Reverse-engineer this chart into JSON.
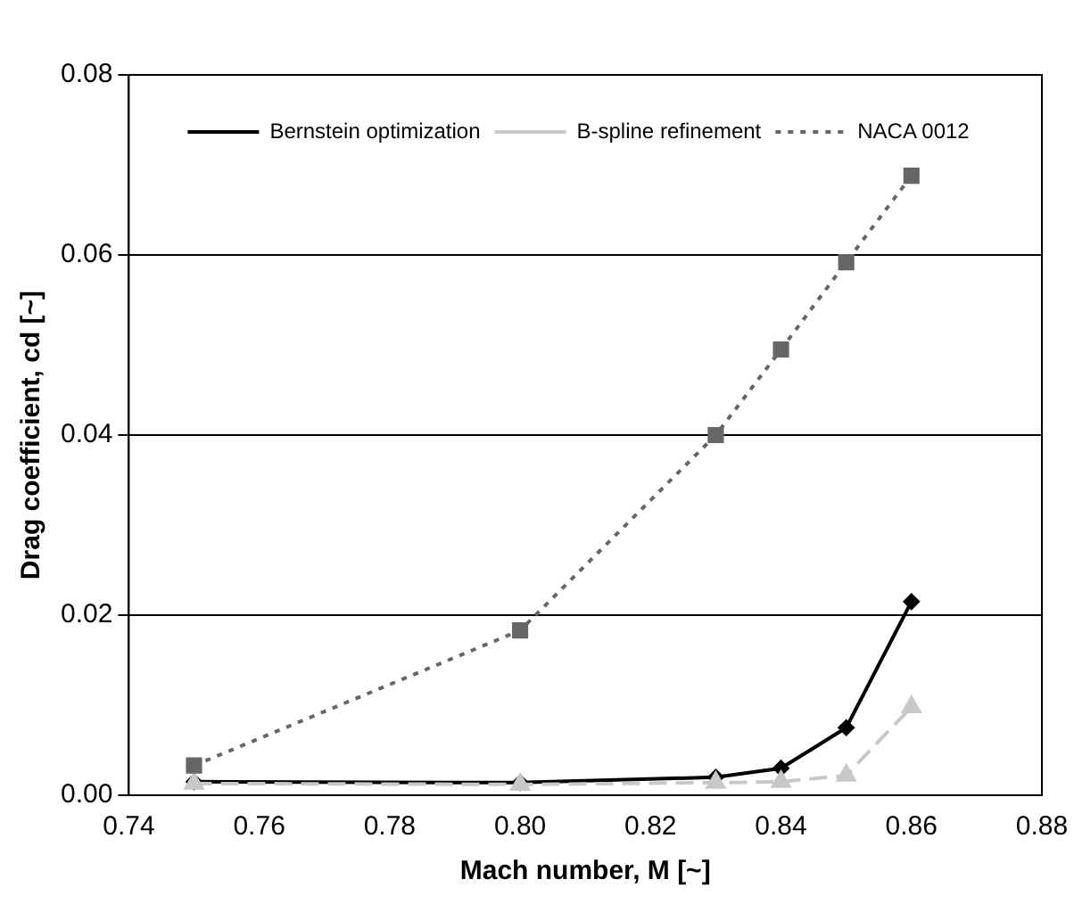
{
  "chart_data": {
    "type": "line",
    "xlabel": "Mach number, M [~]",
    "ylabel": "Drag coefficient, cd [~]",
    "x": [
      0.75,
      0.8,
      0.83,
      0.84,
      0.85,
      0.86
    ],
    "series": [
      {
        "name": "Bernstein optimization",
        "color": "#000000",
        "marker": "diamond",
        "line_style": "solid",
        "values": [
          0.0015,
          0.0014,
          0.002,
          0.003,
          0.0075,
          0.0215
        ]
      },
      {
        "name": "B-spline refinement",
        "color": "#c8c8c8",
        "marker": "triangle",
        "line_style": "dashed",
        "values": [
          0.0013,
          0.0012,
          0.0014,
          0.0015,
          0.0022,
          0.0098
        ]
      },
      {
        "name": "NACA 0012",
        "color": "#666666",
        "marker": "square",
        "line_style": "dotted",
        "values": [
          0.0033,
          0.0183,
          0.04,
          0.0495,
          0.0592,
          0.0688
        ]
      }
    ],
    "xlim": [
      0.74,
      0.88
    ],
    "xticks": [
      {
        "value": 0.74,
        "label": "0.74"
      },
      {
        "value": 0.76,
        "label": "0.76"
      },
      {
        "value": 0.78,
        "label": "0.78"
      },
      {
        "value": 0.8,
        "label": "0.80"
      },
      {
        "value": 0.82,
        "label": "0.82"
      },
      {
        "value": 0.84,
        "label": "0.84"
      },
      {
        "value": 0.86,
        "label": "0.86"
      },
      {
        "value": 0.88,
        "label": "0.88"
      }
    ],
    "ylim": [
      0,
      0.08
    ],
    "yticks": [
      {
        "value": 0,
        "label": "0.00"
      },
      {
        "value": 0.02,
        "label": "0.02"
      },
      {
        "value": 0.04,
        "label": "0.04"
      },
      {
        "value": 0.06,
        "label": "0.06"
      },
      {
        "value": 0.08,
        "label": "0.08"
      }
    ],
    "grid": "y",
    "legend": "top left"
  }
}
